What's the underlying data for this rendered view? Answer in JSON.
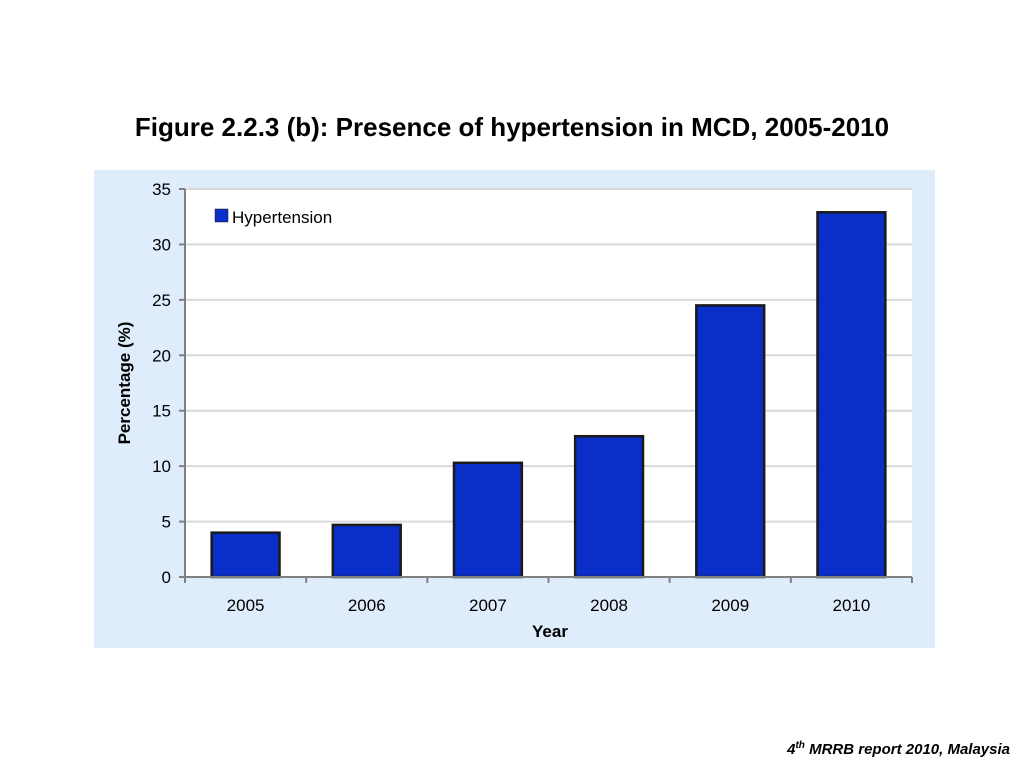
{
  "slide": {
    "title": "Figure 2.2.3 (b): Presence of hypertension in MCD, 2005-2010",
    "footer": {
      "prefix": "4",
      "superscript": "th",
      "text": " MRRB report 2010, Malaysia"
    }
  },
  "colors": {
    "bar": "#0a2fc8",
    "bar_stroke": "#1a1a1a",
    "plot_bg": "#ffffff",
    "panel_bg": "#dfecfc",
    "grid": "#d9d9d9",
    "axis": "#808080"
  },
  "chart_data": {
    "type": "bar",
    "title": "Figure 2.2.3 (b): Presence of hypertension in MCD, 2005-2010",
    "xlabel": "Year",
    "ylabel": "Percentage (%)",
    "categories": [
      "2005",
      "2006",
      "2007",
      "2008",
      "2009",
      "2010"
    ],
    "series": [
      {
        "name": "Hypertension",
        "values": [
          4.0,
          4.7,
          10.3,
          12.7,
          24.5,
          32.9
        ]
      }
    ],
    "ylim": [
      0,
      35
    ],
    "yticks": [
      0,
      5,
      10,
      15,
      20,
      25,
      30,
      35
    ],
    "grid": true,
    "legend": "top-left"
  }
}
